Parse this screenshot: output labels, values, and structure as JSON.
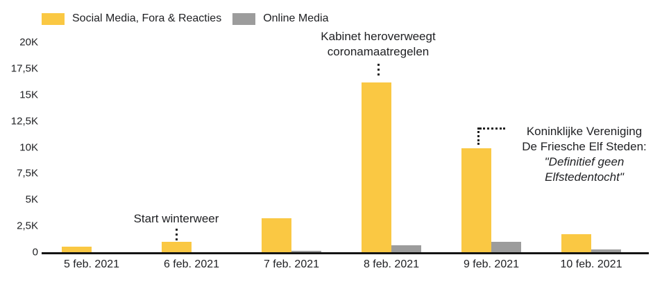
{
  "legend": {
    "items": [
      {
        "key": "social-media",
        "label": "Social Media, Fora & Reacties",
        "color": "#FAC843"
      },
      {
        "key": "online-media",
        "label": "Online Media",
        "color": "#9C9C9C"
      }
    ]
  },
  "chart_data": {
    "type": "bar",
    "title": "",
    "categories": [
      "5 feb. 2021",
      "6 feb. 2021",
      "7 feb. 2021",
      "8 feb. 2021",
      "9 feb. 2021",
      "10 feb. 2021"
    ],
    "series": [
      {
        "key": "social-media",
        "name": "Social Media, Fora & Reacties",
        "color": "#FAC843",
        "values": [
          500,
          1000,
          3250,
          16200,
          9900,
          1700
        ]
      },
      {
        "key": "online-media",
        "name": "Online Media",
        "color": "#9C9C9C",
        "values": [
          0,
          0,
          120,
          650,
          1000,
          250
        ]
      }
    ],
    "ylim": [
      0,
      20000
    ],
    "yticks": [
      "0",
      "2,5K",
      "5K",
      "7,5K",
      "10K",
      "12,5K",
      "15K",
      "17,5K",
      "20K"
    ],
    "ytick_values": [
      0,
      2500,
      5000,
      7500,
      10000,
      12500,
      15000,
      17500,
      20000
    ],
    "grid": false,
    "legend_position": "top-left",
    "annotations": [
      {
        "target": "6 feb. 2021",
        "connector": "vertical-dotted",
        "lines": [
          "Start winterweer"
        ]
      },
      {
        "target": "8 feb. 2021",
        "connector": "vertical-dotted",
        "lines": [
          "Kabinet heroverweegt",
          "coronamaatregelen"
        ]
      },
      {
        "target": "9 feb. 2021",
        "connector": "corner-dotted",
        "lines": [
          "Koninklijke Vereniging",
          "De Friesche Elf Steden:"
        ],
        "quote_lines": [
          "\"Definitief geen",
          "Elfstedentocht\""
        ]
      }
    ]
  }
}
